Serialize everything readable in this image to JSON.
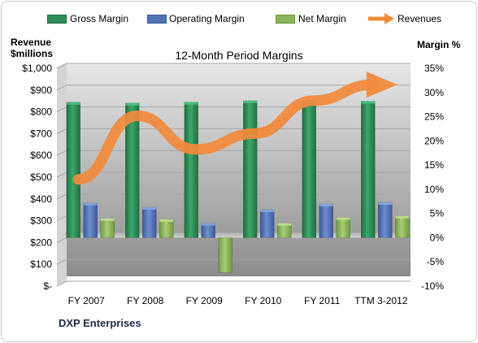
{
  "chart_data": {
    "type": "bar",
    "title": "12-Month Period Margins",
    "footer_text": "DXP Enterprises",
    "categories": [
      "FY 2007",
      "FY 2008",
      "FY 2009",
      "FY 2010",
      "FY 2011",
      "TTM 3-2012"
    ],
    "left_axis": {
      "title_line1": "Revenue",
      "title_line2": "$millions",
      "ylim": [
        0,
        1000
      ],
      "ticks": [
        0,
        100,
        200,
        300,
        400,
        500,
        600,
        700,
        800,
        900,
        1000
      ],
      "tick_labels": [
        "$-",
        "$100",
        "$200",
        "$300",
        "$400",
        "$500",
        "$600",
        "$700",
        "$800",
        "$900",
        "$1,000"
      ]
    },
    "right_axis": {
      "title": "Margin %",
      "ylim": [
        -10,
        35
      ],
      "ticks": [
        -10,
        -5,
        0,
        5,
        10,
        15,
        20,
        25,
        30,
        35
      ],
      "tick_labels": [
        "-10%",
        "-5%",
        "0%",
        "5%",
        "10%",
        "15%",
        "20%",
        "25%",
        "30%",
        "35%"
      ]
    },
    "series": [
      {
        "name": "Gross Margin",
        "axis": "right",
        "type": "bar",
        "color": "#2f8c57",
        "values": [
          28.0,
          27.8,
          28.0,
          28.3,
          28.3,
          28.2
        ]
      },
      {
        "name": "Operating Margin",
        "axis": "right",
        "type": "bar",
        "color": "#4f73b6",
        "values": [
          7.2,
          6.3,
          3.0,
          5.8,
          7.0,
          7.3
        ]
      },
      {
        "name": "Net Margin",
        "axis": "right",
        "type": "bar",
        "color": "#8db35b",
        "values": [
          4.0,
          3.8,
          -7.2,
          3.0,
          4.2,
          4.5
        ]
      },
      {
        "name": "Revenues",
        "axis": "left",
        "type": "line-arrow",
        "color": "#f28a3b",
        "values": [
          445,
          737,
          583,
          656,
          807,
          880
        ]
      }
    ],
    "grid": true,
    "legend_position": "top"
  }
}
